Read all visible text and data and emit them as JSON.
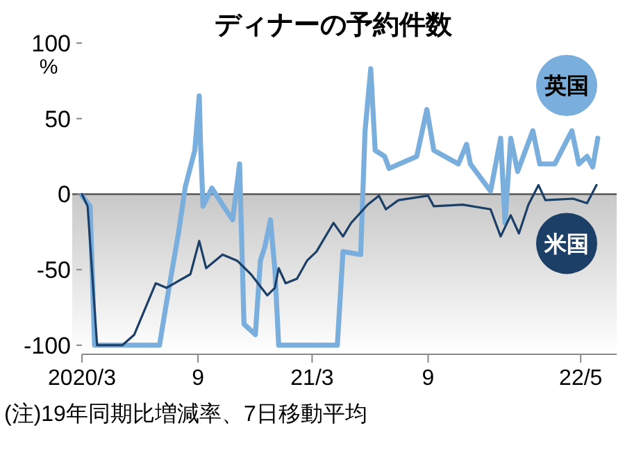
{
  "chart_data": {
    "type": "line",
    "title": "ディナーの予約件数",
    "ylabel": "%",
    "xlim": [
      "2020-03-01",
      "2022-06-27"
    ],
    "xticks": [
      {
        "value": "2020-03",
        "label": "2020/3"
      },
      {
        "value": "2020-09",
        "label": "9"
      },
      {
        "value": "2021-03",
        "label": "21/3"
      },
      {
        "value": "2021-09",
        "label": "9"
      },
      {
        "value": "2022-05",
        "label": "22/5"
      }
    ],
    "ylim": [
      -106,
      100
    ],
    "yticks": [
      -100,
      -50,
      0,
      50,
      100
    ],
    "grid": false,
    "line_style": "solid",
    "bands": [
      {
        "axis": "y",
        "from": -106,
        "to": 0,
        "color": "#c8c8c8"
      }
    ],
    "ref_lines": [
      {
        "axis": "y",
        "value": 0,
        "color": "#555555"
      }
    ],
    "series": [
      {
        "name": "英国",
        "color": "#7aaedc",
        "x": [
          "2020-03-01",
          "2020-03-14",
          "2020-03-21",
          "2020-07-02",
          "2020-07-13",
          "2020-08-01",
          "2020-08-12",
          "2020-08-27",
          "2020-09-03",
          "2020-09-05",
          "2020-09-09",
          "2020-09-23",
          "2020-10-10",
          "2020-10-26",
          "2020-11-06",
          "2020-11-13",
          "2020-12-01",
          "2020-12-09",
          "2020-12-16",
          "2020-12-25",
          "2021-01-01",
          "2021-01-07",
          "2021-03-12",
          "2021-04-10",
          "2021-04-19",
          "2021-05-17",
          "2021-05-24",
          "2021-06-02",
          "2021-06-09",
          "2021-06-24",
          "2021-07-01",
          "2021-08-14",
          "2021-08-30",
          "2021-09-10",
          "2021-10-19",
          "2021-11-01",
          "2021-11-07",
          "2021-12-09",
          "2021-12-25",
          "2022-01-01",
          "2022-01-10",
          "2022-01-21",
          "2022-02-14",
          "2022-02-25",
          "2022-03-21",
          "2022-04-17",
          "2022-04-28",
          "2022-05-11",
          "2022-05-20",
          "2022-05-28"
        ],
        "values": [
          -1,
          -8,
          -100,
          -100,
          -72,
          -26,
          5,
          29,
          65,
          34,
          -8,
          4,
          -7,
          -17,
          20,
          -86,
          -93,
          -44,
          -35,
          -17,
          -50,
          -100,
          -100,
          -100,
          -38,
          -40,
          42,
          83,
          29,
          25,
          17,
          25,
          56,
          29,
          20,
          33,
          20,
          2,
          37,
          -19,
          37,
          15,
          42,
          20,
          20,
          42,
          20,
          25,
          18,
          37
        ]
      },
      {
        "name": "米国",
        "color": "#1b3f66",
        "x": [
          "2020-03-01",
          "2020-03-10",
          "2020-03-25",
          "2020-05-04",
          "2020-05-23",
          "2020-06-26",
          "2020-07-13",
          "2020-08-20",
          "2020-09-03",
          "2020-09-14",
          "2020-10-10",
          "2020-11-02",
          "2020-11-24",
          "2020-12-20",
          "2021-01-01",
          "2021-01-07",
          "2021-01-18",
          "2021-02-05",
          "2021-02-21",
          "2021-03-08",
          "2021-04-04",
          "2021-04-19",
          "2021-05-02",
          "2021-05-28",
          "2021-06-15",
          "2021-06-26",
          "2021-07-16",
          "2021-09-01",
          "2021-09-10",
          "2021-10-26",
          "2021-12-09",
          "2021-12-25",
          "2022-01-10",
          "2022-01-23",
          "2022-02-07",
          "2022-02-23",
          "2022-03-06",
          "2022-04-19",
          "2022-05-11",
          "2022-05-26"
        ],
        "values": [
          0,
          -8,
          -100,
          -100,
          -93,
          -59,
          -62,
          -53,
          -31,
          -49,
          -40,
          -44,
          -53,
          -67,
          -62,
          -49,
          -59,
          -56,
          -44,
          -38,
          -19,
          -28,
          -19,
          -7,
          -1,
          -10,
          -4,
          -1,
          -8,
          -7,
          -10,
          -28,
          -14,
          -26,
          -7,
          6,
          -4,
          -3,
          -6,
          6
        ]
      }
    ],
    "annotations": [
      "(注)19年同期比増減率、7日移動平均"
    ]
  }
}
